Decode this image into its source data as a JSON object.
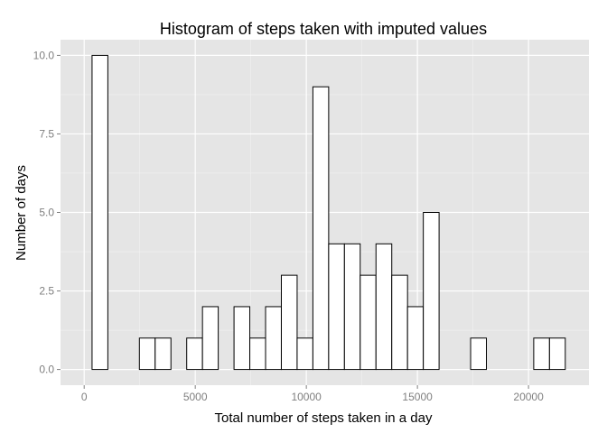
{
  "chart_data": {
    "type": "bar",
    "title": "Histogram of steps taken with imputed values",
    "xlabel": "Total number of steps taken in a day",
    "ylabel": "Number of days",
    "bin_width": 710,
    "bin_centers": [
      0,
      710,
      1420,
      2130,
      2840,
      3550,
      4260,
      4970,
      5680,
      6390,
      7100,
      7810,
      8520,
      9230,
      9940,
      10650,
      11360,
      12070,
      12780,
      13490,
      14200,
      14910,
      15620,
      16330,
      17040,
      17750,
      18460,
      19170,
      19880,
      20590,
      21300
    ],
    "counts": [
      0,
      10,
      0,
      0,
      1,
      1,
      0,
      1,
      2,
      0,
      2,
      1,
      2,
      3,
      1,
      9,
      4,
      4,
      3,
      4,
      3,
      2,
      5,
      0,
      0,
      1,
      0,
      0,
      0,
      1,
      1
    ],
    "xlim": [
      -1065,
      22720
    ],
    "ylim": [
      -0.5,
      10.5
    ],
    "x_ticks": [
      0,
      5000,
      10000,
      15000,
      20000
    ],
    "x_tick_labels": [
      "0",
      "5000",
      "10000",
      "15000",
      "20000"
    ],
    "y_ticks": [
      0,
      2.5,
      5,
      7.5,
      10
    ],
    "y_tick_labels": [
      "0.0",
      "2.5",
      "5.0",
      "7.5",
      "10.0"
    ],
    "grid": true,
    "colors": {
      "panel": "#e5e5e5",
      "grid_major": "#ffffff",
      "grid_minor": "#f2f2f2",
      "bar_fill": "#ffffff",
      "bar_stroke": "#000000",
      "tick": "#7f7f7f"
    }
  }
}
